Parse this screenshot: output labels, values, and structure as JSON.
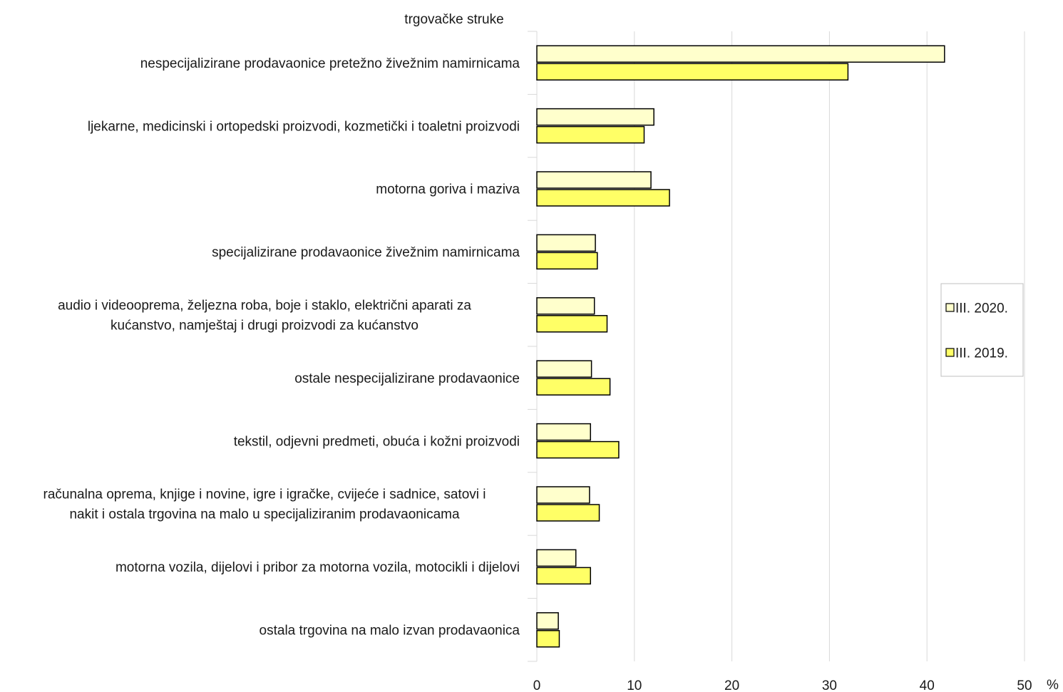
{
  "chart_data": {
    "type": "bar",
    "orientation": "horizontal",
    "title": "trgovačke struke",
    "xlabel": "%",
    "xlim": [
      0,
      50
    ],
    "xticks": [
      0,
      10,
      20,
      30,
      40,
      50
    ],
    "grid": true,
    "legend_position": "right",
    "categories": [
      [
        "nespecijalizirane prodavaonice pretežno živežnim namirnicama"
      ],
      [
        "ljekarne, medicinski i ortopedski proizvodi, kozmetički i toaletni proizvodi"
      ],
      [
        "motorna goriva i maziva"
      ],
      [
        "specijalizirane prodavaonice živežnim namirnicama"
      ],
      [
        "audio i videooprema, željezna roba, boje i staklo, električni aparati za",
        "kućanstvo, namještaj i drugi proizvodi za kućanstvo"
      ],
      [
        "ostale nespecijalizirane prodavaonice"
      ],
      [
        "tekstil, odjevni predmeti, obuća i kožni proizvodi"
      ],
      [
        "računalna oprema, knjige i novine, igre i igračke, cvijeće i sadnice,  satovi i",
        "nakit i ostala trgovina na malo u specijaliziranim prodavaonicama"
      ],
      [
        "motorna vozila, dijelovi i pribor za motorna vozila, motocikli i dijelovi"
      ],
      [
        "ostala trgovina na malo izvan prodavaonica"
      ]
    ],
    "series": [
      {
        "name": "III. 2020.",
        "color": "#ffffcc",
        "values": [
          41.8,
          12.0,
          11.7,
          6.0,
          5.9,
          5.6,
          5.5,
          5.4,
          4.0,
          2.2
        ]
      },
      {
        "name": "III. 2019.",
        "color": "#ffff66",
        "values": [
          31.9,
          11.0,
          13.6,
          6.2,
          7.2,
          7.5,
          8.4,
          6.4,
          5.5,
          2.3
        ]
      }
    ],
    "colors": {
      "bar_stroke": "#000000",
      "grid": "#d9d9d9",
      "legend_border": "#bfbfbf"
    }
  }
}
